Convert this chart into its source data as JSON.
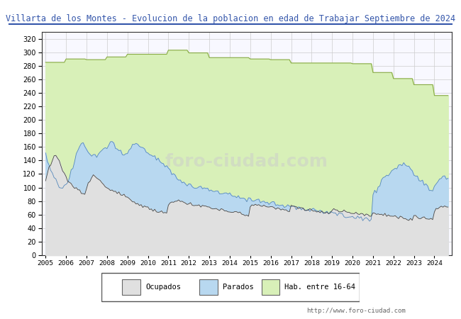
{
  "title": "Villarta de los Montes - Evolucion de la poblacion en edad de Trabajar Septiembre de 2024",
  "title_color": "#3355aa",
  "ylabel": "",
  "xlabel": "",
  "ylim": [
    0,
    330
  ],
  "yticks": [
    0,
    20,
    40,
    60,
    80,
    100,
    120,
    140,
    160,
    180,
    200,
    220,
    240,
    260,
    280,
    300,
    320
  ],
  "grid_color": "#cccccc",
  "plot_bg": "#f8f8ff",
  "watermark": "http://www.foro-ciudad.com",
  "watermark_bg": "foro-ciudad.com",
  "legend_labels": [
    "Ocupados",
    "Parados",
    "Hab. entre 16-64"
  ],
  "area_ocupados_color": "#e0e0e0",
  "area_parados_color": "#b8d8f0",
  "area_hab_color": "#d8f0b8",
  "line_ocupados_color": "#444444",
  "line_parados_color": "#5588bb",
  "line_hab_color": "#88aa44",
  "fig_bg": "#ffffff",
  "years": [
    2005,
    2006,
    2007,
    2008,
    2009,
    2010,
    2011,
    2012,
    2013,
    2014,
    2015,
    2016,
    2017,
    2018,
    2019,
    2020,
    2021,
    2022,
    2023,
    2024
  ],
  "hab_annual": [
    285,
    290,
    289,
    293,
    297,
    297,
    303,
    299,
    292,
    292,
    290,
    289,
    284,
    284,
    284,
    283,
    270,
    261,
    252,
    236
  ],
  "parados_monthly": [
    150,
    140,
    135,
    125,
    120,
    115,
    110,
    105,
    100,
    100,
    100,
    102,
    105,
    110,
    115,
    125,
    130,
    140,
    150,
    155,
    160,
    163,
    165,
    160,
    155,
    153,
    150,
    148,
    150,
    148,
    147,
    150,
    153,
    155,
    158,
    160,
    158,
    160,
    165,
    168,
    165,
    160,
    158,
    155,
    153,
    150,
    148,
    147,
    150,
    155,
    160,
    162,
    163,
    165,
    165,
    162,
    160,
    158,
    155,
    152,
    150,
    148,
    147,
    145,
    145,
    143,
    142,
    140,
    138,
    135,
    133,
    130,
    128,
    125,
    122,
    120,
    118,
    115,
    113,
    110,
    108,
    107,
    105,
    103,
    103,
    103,
    102,
    102,
    100,
    100,
    100,
    99,
    99,
    98,
    98,
    98,
    97,
    97,
    96,
    95,
    95,
    94,
    93,
    93,
    92,
    91,
    90,
    90,
    90,
    89,
    88,
    88,
    87,
    86,
    85,
    84,
    84,
    83,
    82,
    82,
    82,
    82,
    81,
    81,
    80,
    80,
    79,
    79,
    78,
    78,
    77,
    77,
    77,
    77,
    76,
    76,
    75,
    75,
    74,
    74,
    73,
    73,
    72,
    72,
    72,
    71,
    71,
    70,
    70,
    69,
    69,
    68,
    68,
    67,
    67,
    67,
    67,
    67,
    66,
    66,
    65,
    65,
    64,
    64,
    63,
    63,
    62,
    62,
    62,
    62,
    61,
    61,
    60,
    60,
    59,
    59,
    58,
    58,
    57,
    57,
    57,
    57,
    56,
    56,
    55,
    55,
    54,
    54,
    53,
    53,
    52,
    52,
    90,
    95,
    95,
    100,
    105,
    110,
    115,
    118,
    118,
    120,
    120,
    122,
    125,
    128,
    130,
    132,
    133,
    135,
    135,
    133,
    132,
    130,
    128,
    125,
    120,
    118,
    115,
    112,
    110,
    108,
    105,
    103,
    100,
    98,
    96,
    95,
    103,
    108,
    110,
    115
  ],
  "ocupados_monthly": [
    108,
    120,
    130,
    135,
    140,
    145,
    148,
    145,
    140,
    130,
    125,
    120,
    115,
    110,
    108,
    105,
    102,
    100,
    98,
    96,
    95,
    93,
    92,
    90,
    100,
    105,
    110,
    115,
    120,
    118,
    115,
    113,
    110,
    108,
    105,
    103,
    100,
    98,
    97,
    96,
    95,
    94,
    93,
    92,
    91,
    90,
    89,
    88,
    85,
    82,
    80,
    78,
    77,
    76,
    75,
    74,
    73,
    72,
    71,
    70,
    70,
    69,
    68,
    67,
    67,
    66,
    65,
    65,
    64,
    63,
    63,
    62,
    75,
    77,
    78,
    79,
    80,
    80,
    80,
    79,
    78,
    78,
    77,
    77,
    76,
    76,
    75,
    75,
    74,
    74,
    73,
    73,
    72,
    72,
    71,
    71,
    70,
    70,
    69,
    69,
    68,
    68,
    67,
    67,
    66,
    66,
    65,
    65,
    65,
    64,
    64,
    63,
    63,
    62,
    62,
    61,
    61,
    60,
    60,
    59,
    73,
    74,
    74,
    75,
    75,
    74,
    74,
    73,
    73,
    72,
    72,
    71,
    71,
    70,
    70,
    69,
    69,
    68,
    68,
    67,
    67,
    66,
    66,
    65,
    72,
    72,
    71,
    71,
    70,
    70,
    69,
    69,
    68,
    68,
    67,
    67,
    67,
    66,
    66,
    65,
    65,
    64,
    64,
    63,
    63,
    62,
    62,
    61,
    68,
    68,
    67,
    67,
    66,
    66,
    65,
    65,
    64,
    64,
    63,
    63,
    63,
    62,
    62,
    61,
    61,
    60,
    60,
    59,
    59,
    58,
    58,
    57,
    63,
    63,
    62,
    62,
    61,
    61,
    60,
    60,
    59,
    59,
    58,
    58,
    58,
    57,
    57,
    56,
    56,
    55,
    55,
    54,
    54,
    53,
    53,
    52,
    58,
    57,
    57,
    56,
    56,
    55,
    55,
    54,
    54,
    53,
    53,
    52,
    65,
    68,
    70,
    72
  ]
}
